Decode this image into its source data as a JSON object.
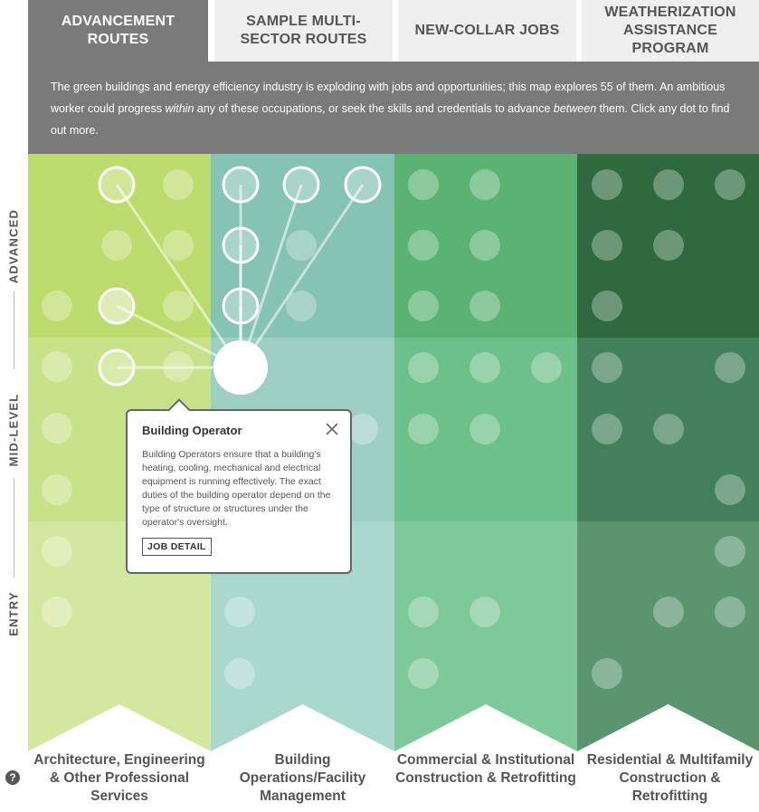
{
  "tabs": [
    {
      "label": "ADVANCEMENT ROUTES",
      "active": true
    },
    {
      "label": "SAMPLE MULTI-SECTOR ROUTES",
      "active": false
    },
    {
      "label": "NEW-COLLAR JOBS",
      "active": false
    },
    {
      "label": "WEATHERIZATION ASSISTANCE PROGRAM",
      "active": false
    }
  ],
  "intro": {
    "part1": "The green buildings and energy efficiency industry is exploding with jobs and opportunities; this map explores 55 of them. An ambitious worker could progress ",
    "em1": "within",
    "part2": " any of these occupations, or seek the skills and credentials to advance ",
    "em2": "between",
    "part3": " them. Click any dot to find out more."
  },
  "levels": [
    "ADVANCED",
    "MID-LEVEL",
    "ENTRY"
  ],
  "sectors": [
    {
      "label": "Architecture, Engineering & Other Professional Services"
    },
    {
      "label": "Building Operations/Facility Management"
    },
    {
      "label": "Commercial & Institutional Construction & Retrofitting"
    },
    {
      "label": "Residential & Multifamily Construction & Retrofitting"
    }
  ],
  "colors": {
    "sector_advanced": [
      "#bcdc6e",
      "#85c3b2",
      "#5ab373",
      "#2f6a3f"
    ],
    "sector_mid": [
      "#c8e28a",
      "#9dd0c3",
      "#6cc08a",
      "#41805a"
    ],
    "sector_entry": [
      "#d3e89f",
      "#a9d8cd",
      "#7ec999",
      "#5a9570"
    ]
  },
  "help_icon": "question-icon",
  "popup": {
    "title": "Building Operator",
    "body": "Building Operators ensure that a building's heating, cooling, mechanical and electrical equipment is running effectively. The exact duties of the building operator depend on the type of structure or structures under the operator's oversight.",
    "button": "JOB DETAIL",
    "close_icon": "close-icon"
  }
}
